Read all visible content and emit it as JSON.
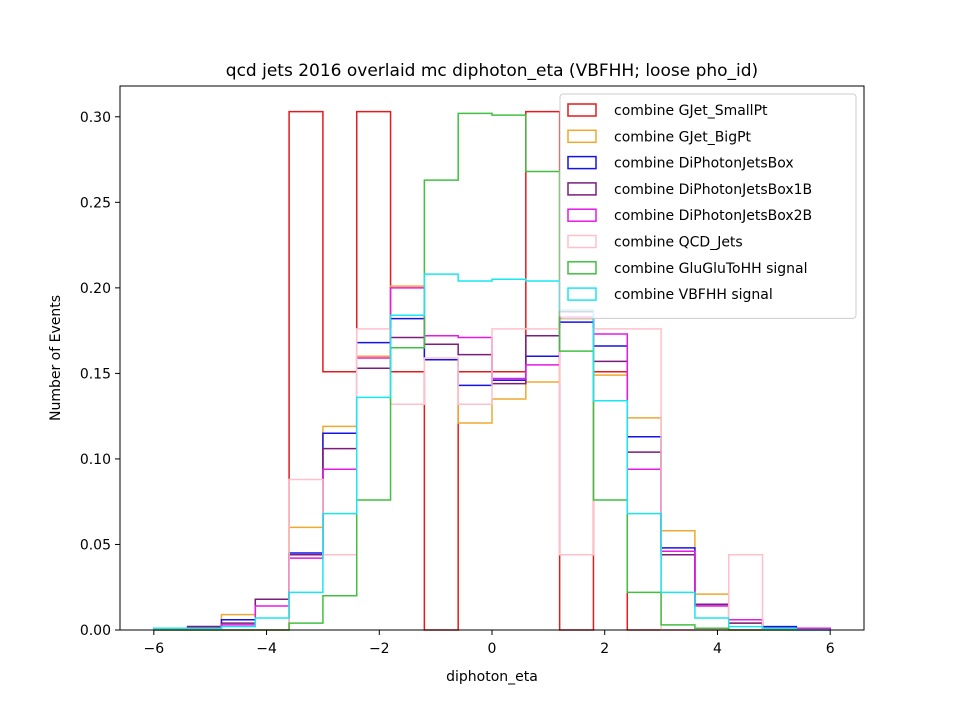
{
  "chart_data": {
    "type": "histogram-step",
    "title": "qcd jets 2016 overlaid mc diphoton_eta (VBFHH; loose pho_id)",
    "xlabel": "diphoton_eta",
    "ylabel": "Number of Events",
    "xlim": [
      -6.6,
      6.6
    ],
    "ylim": [
      0,
      0.318
    ],
    "xticks": [
      -6,
      -4,
      -2,
      0,
      2,
      4,
      6
    ],
    "yticks": [
      0.0,
      0.05,
      0.1,
      0.15,
      0.2,
      0.25,
      0.3
    ],
    "ytick_labels": [
      "0.00",
      "0.05",
      "0.10",
      "0.15",
      "0.20",
      "0.25",
      "0.30"
    ],
    "grid": false,
    "legend_position": "upper-right",
    "bin_edges": [
      -6.0,
      -5.4,
      -4.8,
      -4.2,
      -3.6,
      -3.0,
      -2.4,
      -1.8,
      -1.2,
      -0.6,
      0.0,
      0.6,
      1.2,
      1.8,
      2.4,
      3.0,
      3.6,
      4.2,
      4.8,
      5.4,
      6.0
    ],
    "series": [
      {
        "name": "combine GJet_SmallPt",
        "color": "#e41a1c",
        "values": [
          0,
          0,
          0,
          0,
          0.303,
          0.151,
          0.303,
          0.151,
          0,
          0.151,
          0.151,
          0.303,
          0,
          0.151,
          0,
          0,
          0,
          0,
          0,
          0
        ]
      },
      {
        "name": "combine GJet_BigPt",
        "color": "#f0a830",
        "values": [
          0.001,
          0.002,
          0.009,
          0.018,
          0.06,
          0.119,
          0.16,
          0.201,
          0.158,
          0.121,
          0.135,
          0.145,
          0.182,
          0.149,
          0.124,
          0.058,
          0.021,
          0.004,
          0.002,
          0.001
        ]
      },
      {
        "name": "combine DiPhotonJetsBox",
        "color": "#1414e6",
        "values": [
          0.001,
          0.002,
          0.006,
          0.018,
          0.045,
          0.115,
          0.168,
          0.182,
          0.158,
          0.143,
          0.146,
          0.16,
          0.18,
          0.166,
          0.113,
          0.048,
          0.015,
          0.006,
          0.002,
          0.001
        ]
      },
      {
        "name": "combine DiPhotonJetsBox1B",
        "color": "#7b1e7a",
        "values": [
          0.001,
          0.002,
          0.004,
          0.018,
          0.044,
          0.106,
          0.153,
          0.171,
          0.167,
          0.161,
          0.144,
          0.172,
          0.186,
          0.157,
          0.104,
          0.044,
          0.015,
          0.004,
          0.001,
          0.001
        ]
      },
      {
        "name": "combine DiPhotonJetsBox2B",
        "color": "#e619e6",
        "values": [
          0.001,
          0.001,
          0.003,
          0.014,
          0.042,
          0.094,
          0.159,
          0.2,
          0.172,
          0.171,
          0.147,
          0.155,
          0.183,
          0.173,
          0.094,
          0.046,
          0.014,
          0.006,
          0.001,
          0.001
        ]
      },
      {
        "name": "combine QCD_Jets",
        "color": "#ffc0cb",
        "values": [
          0,
          0,
          0,
          0,
          0.088,
          0.044,
          0.176,
          0.132,
          0.159,
          0.132,
          0.176,
          0.176,
          0.044,
          0.176,
          0.176,
          0,
          0,
          0.044,
          0,
          0
        ]
      },
      {
        "name": "combine GluGluToHH signal",
        "color": "#40c040",
        "values": [
          0,
          0,
          0,
          0,
          0.004,
          0.02,
          0.076,
          0.165,
          0.263,
          0.302,
          0.301,
          0.268,
          0.163,
          0.076,
          0.022,
          0.003,
          0.001,
          0,
          0,
          0
        ]
      },
      {
        "name": "combine VBFHH signal",
        "color": "#19e6f0",
        "values": [
          0.001,
          0.001,
          0.002,
          0.007,
          0.022,
          0.068,
          0.136,
          0.184,
          0.208,
          0.204,
          0.205,
          0.204,
          0.187,
          0.134,
          0.068,
          0.022,
          0.007,
          0.002,
          0.001,
          0.0
        ]
      }
    ]
  }
}
